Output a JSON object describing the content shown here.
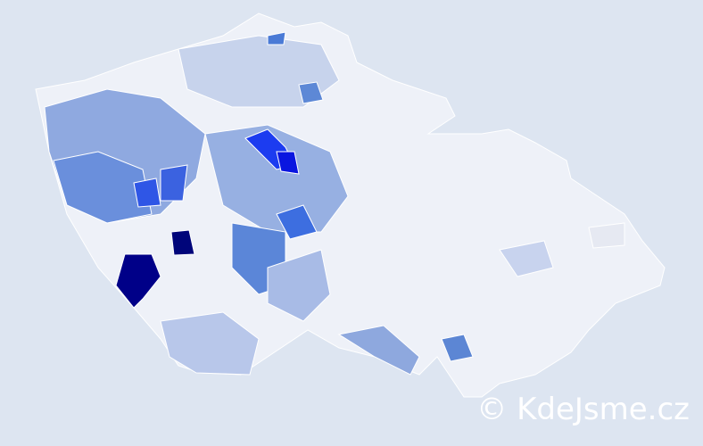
{
  "watermark": "© KdeJsme.cz"
}
